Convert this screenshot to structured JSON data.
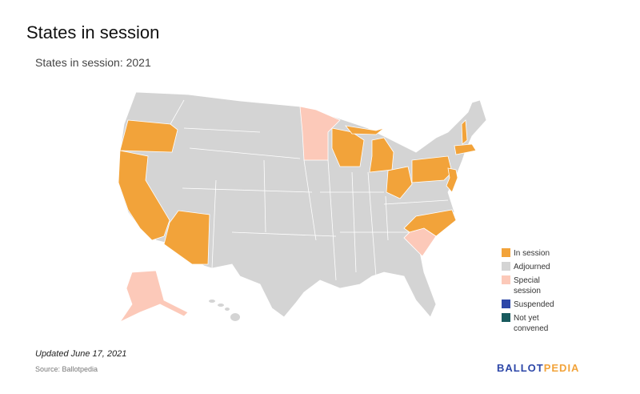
{
  "header": {
    "title": "States in session",
    "subtitle": "States in session: 2021"
  },
  "legend": [
    {
      "label": "In session",
      "color": "#f2a33a"
    },
    {
      "label": "Adjourned",
      "color": "#d4d4d4"
    },
    {
      "label": "Special session",
      "color": "#fcc9b9"
    },
    {
      "label": "Suspended",
      "color": "#2d47a8"
    },
    {
      "label": "Not yet convened",
      "color": "#185a5e"
    }
  ],
  "footer": {
    "note": "Updated June 17, 2021",
    "source": "Source: Ballotpedia",
    "logo": {
      "first": "BALLOT",
      "second": "PEDIA"
    }
  }
}
